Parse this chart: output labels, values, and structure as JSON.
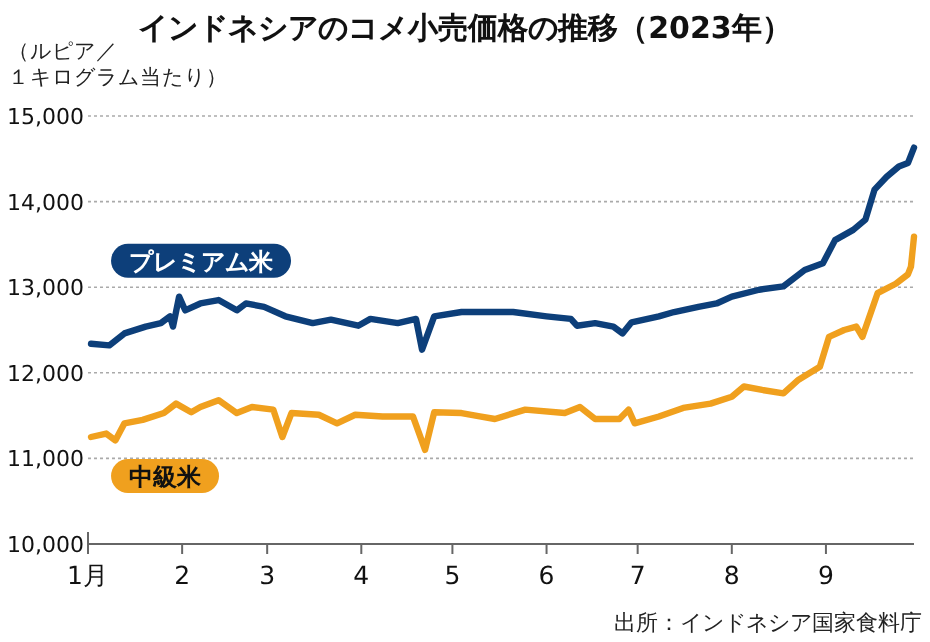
{
  "chart_data": {
    "type": "line",
    "title": "インドネシアのコメ小売価格の推移（2023年）",
    "ylabel": "（ルピア／１キログラム当たり）",
    "annotations": [
      "出所：インドネシア国家食料庁"
    ],
    "xlim": [
      "2023-01-01",
      "2023-09-30"
    ],
    "xticks": [
      {
        "value": "2023-01-01",
        "label": "1月"
      },
      {
        "value": "2023-02-01",
        "label": "2"
      },
      {
        "value": "2023-03-01",
        "label": "3"
      },
      {
        "value": "2023-04-01",
        "label": "4"
      },
      {
        "value": "2023-05-01",
        "label": "5"
      },
      {
        "value": "2023-06-01",
        "label": "6"
      },
      {
        "value": "2023-07-01",
        "label": "7"
      },
      {
        "value": "2023-08-01",
        "label": "8"
      },
      {
        "value": "2023-09-01",
        "label": "9"
      }
    ],
    "ylim": [
      10000,
      15000
    ],
    "yticks": [
      {
        "value": 10000,
        "label": "10,000"
      },
      {
        "value": 11000,
        "label": "11,000"
      },
      {
        "value": 12000,
        "label": "12,000"
      },
      {
        "value": 13000,
        "label": "13,000"
      },
      {
        "value": 14000,
        "label": "14,000"
      },
      {
        "value": 15000,
        "label": "15,000"
      }
    ],
    "grid": "y",
    "marker": "none",
    "line_style": "solid",
    "series": [
      {
        "name": "プレミアム米",
        "color": "#0d3f7a",
        "x": [
          "2023-01-02",
          "2023-01-08",
          "2023-01-13",
          "2023-01-20",
          "2023-01-25",
          "2023-01-28",
          "2023-01-29",
          "2023-01-31",
          "2023-02-02",
          "2023-02-07",
          "2023-02-13",
          "2023-02-19",
          "2023-02-22",
          "2023-02-28",
          "2023-03-07",
          "2023-03-16",
          "2023-03-22",
          "2023-03-31",
          "2023-04-04",
          "2023-04-13",
          "2023-04-19",
          "2023-04-21",
          "2023-04-25",
          "2023-05-04",
          "2023-05-10",
          "2023-05-21",
          "2023-06-01",
          "2023-06-09",
          "2023-06-11",
          "2023-06-17",
          "2023-06-23",
          "2023-06-26",
          "2023-06-29",
          "2023-07-08",
          "2023-07-13",
          "2023-07-21",
          "2023-07-27",
          "2023-08-01",
          "2023-08-10",
          "2023-08-18",
          "2023-08-25",
          "2023-08-31",
          "2023-09-04",
          "2023-09-10",
          "2023-09-14",
          "2023-09-17",
          "2023-09-21",
          "2023-09-25",
          "2023-09-28",
          "2023-09-30"
        ],
        "values": [
          12340,
          12320,
          12460,
          12540,
          12580,
          12660,
          12540,
          12890,
          12730,
          12810,
          12850,
          12730,
          12810,
          12770,
          12660,
          12580,
          12620,
          12550,
          12630,
          12580,
          12630,
          12270,
          12660,
          12710,
          12710,
          12710,
          12660,
          12630,
          12550,
          12580,
          12540,
          12460,
          12590,
          12660,
          12710,
          12770,
          12810,
          12890,
          12970,
          13010,
          13200,
          13280,
          13550,
          13670,
          13790,
          14140,
          14290,
          14410,
          14450,
          14630
        ]
      },
      {
        "name": "中級米",
        "color": "#f0a01e",
        "x": [
          "2023-01-02",
          "2023-01-07",
          "2023-01-10",
          "2023-01-13",
          "2023-01-19",
          "2023-01-26",
          "2023-01-30",
          "2023-02-04",
          "2023-02-07",
          "2023-02-13",
          "2023-02-19",
          "2023-02-24",
          "2023-03-03",
          "2023-03-06",
          "2023-03-09",
          "2023-03-18",
          "2023-03-24",
          "2023-03-30",
          "2023-04-08",
          "2023-04-18",
          "2023-04-22",
          "2023-04-25",
          "2023-05-04",
          "2023-05-10",
          "2023-05-15",
          "2023-05-25",
          "2023-06-07",
          "2023-06-12",
          "2023-06-17",
          "2023-06-25",
          "2023-06-28",
          "2023-06-30",
          "2023-07-08",
          "2023-07-16",
          "2023-07-25",
          "2023-08-01",
          "2023-08-05",
          "2023-08-11",
          "2023-08-18",
          "2023-08-23",
          "2023-08-30",
          "2023-09-02",
          "2023-09-07",
          "2023-09-11",
          "2023-09-13",
          "2023-09-18",
          "2023-09-24",
          "2023-09-28",
          "2023-09-29",
          "2023-09-30"
        ],
        "values": [
          11250,
          11290,
          11210,
          11410,
          11450,
          11530,
          11640,
          11540,
          11600,
          11680,
          11530,
          11600,
          11570,
          11250,
          11530,
          11510,
          11410,
          11510,
          11490,
          11490,
          11100,
          11540,
          11530,
          11490,
          11460,
          11570,
          11530,
          11600,
          11460,
          11460,
          11570,
          11410,
          11490,
          11590,
          11640,
          11720,
          11840,
          11800,
          11760,
          11920,
          12070,
          12420,
          12500,
          12540,
          12420,
          12930,
          13040,
          13150,
          13240,
          13590
        ]
      }
    ]
  }
}
